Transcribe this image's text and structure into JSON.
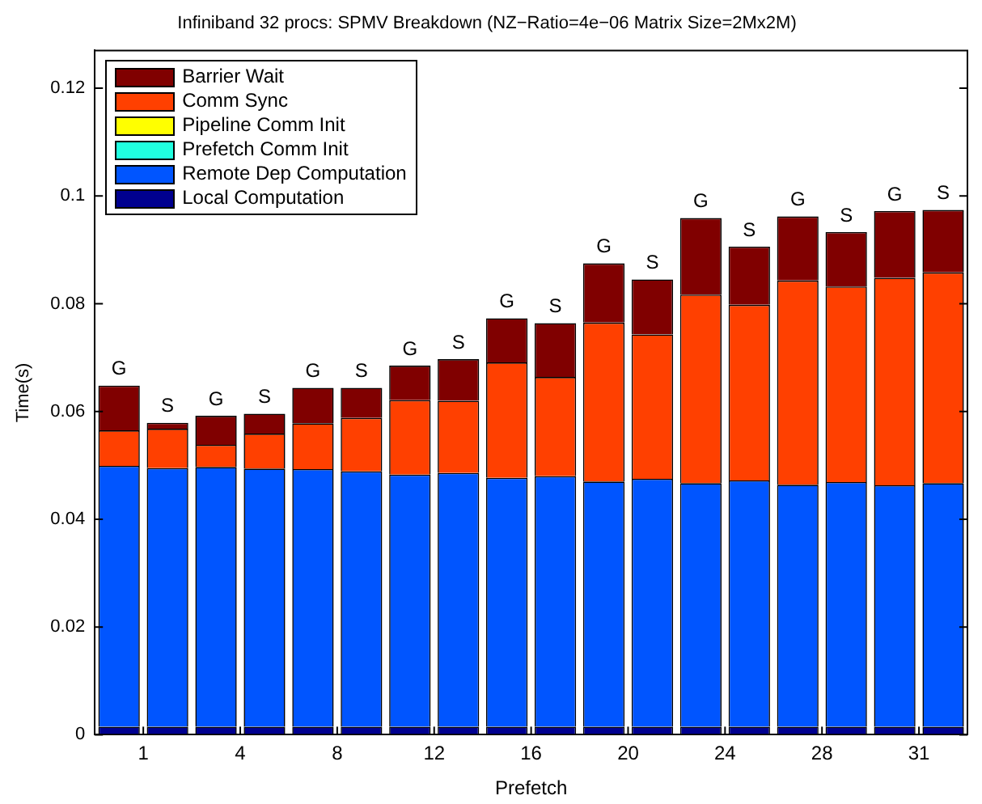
{
  "chart_data": {
    "type": "bar",
    "title": "Infiniband 32 procs: SPMV Breakdown (NZ−Ratio=4e−06 Matrix Size=2Mx2M)",
    "xlabel": "Prefetch",
    "ylabel": "Time(s)",
    "categories": [
      "G",
      "S",
      "G",
      "S",
      "G",
      "S",
      "G",
      "S",
      "G",
      "S",
      "G",
      "S",
      "G",
      "S",
      "G",
      "S",
      "G",
      "S"
    ],
    "stacked": true,
    "legend": "top left",
    "ylim": [
      0,
      0.127
    ],
    "yticks": [
      0,
      0.02,
      0.04,
      0.06,
      0.08,
      0.1,
      0.12
    ],
    "series": [
      {
        "name": "Local Computation",
        "color": "#00008f",
        "values": [
          0.0015,
          0.0015,
          0.0015,
          0.0015,
          0.0015,
          0.0015,
          0.0015,
          0.0015,
          0.0015,
          0.0015,
          0.0015,
          0.0015,
          0.0015,
          0.0015,
          0.0015,
          0.0015,
          0.0015,
          0.0015
        ]
      },
      {
        "name": "Remote Dep Computation",
        "color": "#0055ff",
        "values": [
          0.0484,
          0.048,
          0.0482,
          0.0479,
          0.0478,
          0.0474,
          0.0468,
          0.0471,
          0.0462,
          0.0465,
          0.0455,
          0.046,
          0.0452,
          0.0457,
          0.0449,
          0.0454,
          0.0448,
          0.0452
        ]
      },
      {
        "name": "Prefetch Comm Init",
        "color": "#20ffe0",
        "values": [
          0,
          0,
          0,
          0,
          0,
          0,
          0,
          0,
          0,
          0,
          0,
          0,
          0,
          0,
          0,
          0,
          0,
          0
        ]
      },
      {
        "name": "Pipeline Comm Init",
        "color": "#ffff00",
        "values": [
          0,
          0,
          0,
          0,
          0,
          0,
          0,
          0,
          0,
          0,
          0,
          0,
          0,
          0,
          0,
          0,
          0,
          0
        ]
      },
      {
        "name": "Comm Sync",
        "color": "#ff4000",
        "values": [
          0.0066,
          0.0073,
          0.0041,
          0.0065,
          0.0085,
          0.0099,
          0.0138,
          0.0134,
          0.0214,
          0.0184,
          0.0295,
          0.0268,
          0.035,
          0.0326,
          0.0379,
          0.0363,
          0.0385,
          0.0391
        ]
      },
      {
        "name": "Barrier Wait",
        "color": "#800000",
        "values": [
          0.0083,
          0.0011,
          0.0054,
          0.0037,
          0.0066,
          0.0056,
          0.0064,
          0.0077,
          0.0082,
          0.01,
          0.011,
          0.0102,
          0.0142,
          0.0108,
          0.0119,
          0.0101,
          0.0124,
          0.0116
        ]
      }
    ],
    "annotations": [
      "1",
      "4",
      "8",
      "12",
      "16",
      "20",
      "24",
      "28",
      "31"
    ]
  }
}
